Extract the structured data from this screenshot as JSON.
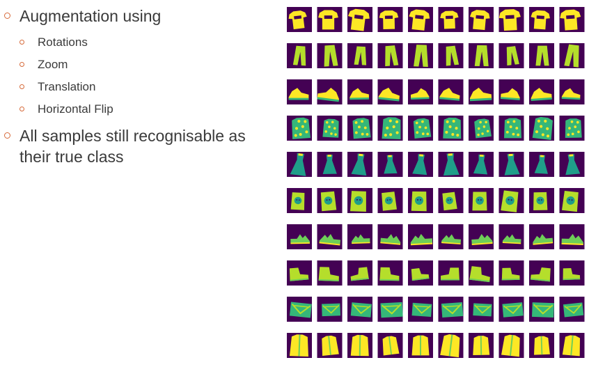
{
  "bullets": [
    {
      "text": "Augmentation using",
      "children": [
        "Rotations",
        "Zoom",
        "Translation",
        "Horizontal Flip"
      ]
    },
    {
      "text": "All samples still recognisable as their true class",
      "children": []
    }
  ],
  "accent_color": "#d66a3a",
  "grid": {
    "rows": 10,
    "cols": 10,
    "colormap": "viridis",
    "background_color": "#440154",
    "foreground_colors": [
      "#fde725",
      "#b5de2b",
      "#6ece58",
      "#35b779",
      "#1f9e89",
      "#26828e"
    ],
    "row_classes": [
      "tshirt-icon",
      "trouser-icon",
      "sneaker-icon",
      "patterned-top-icon",
      "dress-icon",
      "printed-tshirt-icon",
      "sandal-icon",
      "ankle-boot-icon",
      "bag-icon",
      "shirt-icon"
    ]
  }
}
